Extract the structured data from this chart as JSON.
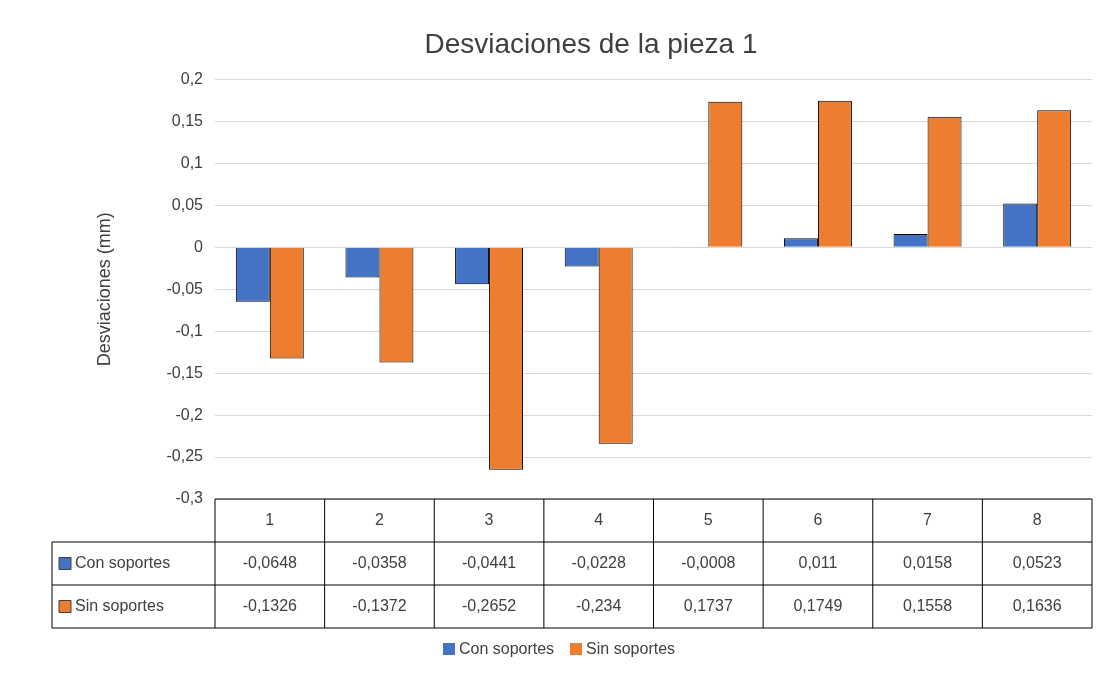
{
  "chart_data": {
    "type": "bar",
    "title": "Desviaciones de la pieza 1",
    "ylabel": "Desviaciones (mm)",
    "categories": [
      "1",
      "2",
      "3",
      "4",
      "5",
      "6",
      "7",
      "8"
    ],
    "series": [
      {
        "name": "Con soportes",
        "color": "#4472c4",
        "values": [
          -0.0648,
          -0.0358,
          -0.0441,
          -0.0228,
          -0.0008,
          0.011,
          0.0158,
          0.0523
        ],
        "value_labels": [
          "-0,0648",
          "-0,0358",
          "-0,0441",
          "-0,0228",
          "-0,0008",
          "0,011",
          "0,0158",
          "0,0523"
        ]
      },
      {
        "name": "Sin soportes",
        "color": "#ed7d31",
        "values": [
          -0.1326,
          -0.1372,
          -0.2652,
          -0.234,
          0.1737,
          0.1749,
          0.1558,
          0.1636
        ],
        "value_labels": [
          "-0,1326",
          "-0,1372",
          "-0,2652",
          "-0,234",
          "0,1737",
          "0,1749",
          "0,1558",
          "0,1636"
        ]
      }
    ],
    "ylim": [
      -0.3,
      0.2
    ],
    "yticks": [
      {
        "value": -0.3,
        "label": "-0,3"
      },
      {
        "value": -0.25,
        "label": "-0,25"
      },
      {
        "value": -0.2,
        "label": "-0,2"
      },
      {
        "value": -0.15,
        "label": "-0,15"
      },
      {
        "value": -0.1,
        "label": "-0,1"
      },
      {
        "value": -0.05,
        "label": "-0,05"
      },
      {
        "value": 0,
        "label": "0"
      },
      {
        "value": 0.05,
        "label": "0,05"
      },
      {
        "value": 0.1,
        "label": "0,1"
      },
      {
        "value": 0.15,
        "label": "0,15"
      },
      {
        "value": 0.2,
        "label": "0,2"
      }
    ],
    "grid": "y",
    "legend": "bottom"
  }
}
